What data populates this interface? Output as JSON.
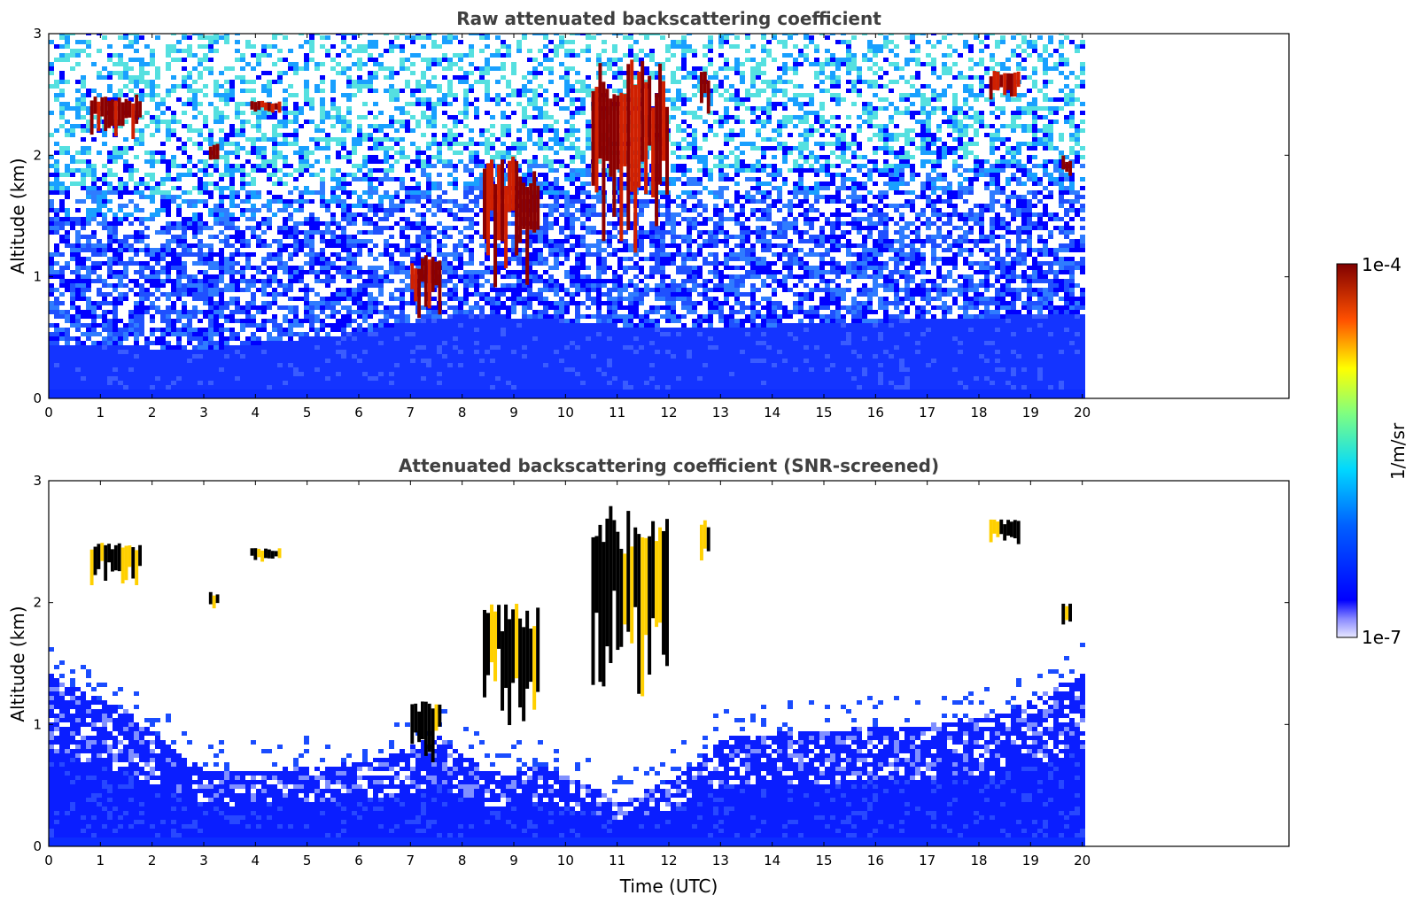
{
  "chart_data": [
    {
      "type": "heatmap",
      "title": "Raw attenuated backscattering coefficient",
      "xlabel": "",
      "ylabel": "Altitude (km)",
      "xlim": [
        0,
        24
      ],
      "ylim": [
        0,
        3
      ],
      "x_ticks": [
        "0",
        "1",
        "2",
        "3",
        "4",
        "5",
        "6",
        "7",
        "8",
        "9",
        "10",
        "11",
        "12",
        "13",
        "14",
        "15",
        "16",
        "17",
        "18",
        "19",
        "20"
      ],
      "y_ticks": [
        "0",
        "1",
        "2",
        "3"
      ],
      "data_extent_x": [
        0,
        20.1
      ],
      "screened": false,
      "features": [
        {
          "type": "cloud",
          "t0": 0.8,
          "t1": 1.8,
          "alt": [
            2.2,
            2.5
          ]
        },
        {
          "type": "cloud",
          "t0": 3.1,
          "t1": 3.3,
          "alt": [
            1.95,
            2.1
          ]
        },
        {
          "type": "cloud",
          "t0": 3.9,
          "t1": 4.5,
          "alt": [
            2.35,
            2.45
          ]
        },
        {
          "type": "cloud",
          "t0": 7.0,
          "t1": 7.6,
          "alt": [
            0.75,
            1.2
          ]
        },
        {
          "type": "cloud",
          "t0": 8.4,
          "t1": 9.5,
          "alt": [
            1.1,
            2.0
          ]
        },
        {
          "type": "cloud",
          "t0": 10.5,
          "t1": 12.0,
          "alt": [
            1.4,
            2.8
          ]
        },
        {
          "type": "cloud",
          "t0": 12.6,
          "t1": 12.8,
          "alt": [
            2.4,
            2.7
          ]
        },
        {
          "type": "cloud",
          "t0": 18.2,
          "t1": 18.8,
          "alt": [
            2.5,
            2.7
          ]
        },
        {
          "type": "cloud",
          "t0": 19.6,
          "t1": 19.8,
          "alt": [
            1.8,
            2.0
          ]
        }
      ],
      "boundary_layer_top_km": [
        {
          "t": 0,
          "alt": 0.45
        },
        {
          "t": 3,
          "alt": 0.4
        },
        {
          "t": 6,
          "alt": 0.55
        },
        {
          "t": 8,
          "alt": 0.7
        },
        {
          "t": 11,
          "alt": 0.6
        },
        {
          "t": 14,
          "alt": 0.6
        },
        {
          "t": 17,
          "alt": 0.65
        },
        {
          "t": 20.1,
          "alt": 0.7
        }
      ]
    },
    {
      "type": "heatmap",
      "title": "Attenuated backscattering coefficient (SNR-screened)",
      "xlabel": "Time (UTC)",
      "ylabel": "Altitude (km)",
      "xlim": [
        0,
        24
      ],
      "ylim": [
        0,
        3
      ],
      "x_ticks": [
        "0",
        "1",
        "2",
        "3",
        "4",
        "5",
        "6",
        "7",
        "8",
        "9",
        "10",
        "11",
        "12",
        "13",
        "14",
        "15",
        "16",
        "17",
        "18",
        "19",
        "20"
      ],
      "y_ticks": [
        "0",
        "1",
        "2",
        "3"
      ],
      "data_extent_x": [
        0,
        20.1
      ],
      "screened": true,
      "screen_top_km": [
        {
          "t": 0,
          "alt": 1.4
        },
        {
          "t": 1.5,
          "alt": 1.1
        },
        {
          "t": 3,
          "alt": 0.6
        },
        {
          "t": 5,
          "alt": 0.65
        },
        {
          "t": 6.2,
          "alt": 0.7
        },
        {
          "t": 7.5,
          "alt": 0.9
        },
        {
          "t": 8.5,
          "alt": 0.6
        },
        {
          "t": 9.5,
          "alt": 0.65
        },
        {
          "t": 10.5,
          "alt": 0.5
        },
        {
          "t": 11,
          "alt": 0.35
        },
        {
          "t": 12,
          "alt": 0.55
        },
        {
          "t": 13,
          "alt": 0.9
        },
        {
          "t": 15,
          "alt": 0.95
        },
        {
          "t": 17,
          "alt": 1.0
        },
        {
          "t": 18.5,
          "alt": 1.1
        },
        {
          "t": 20.1,
          "alt": 1.45
        }
      ]
    }
  ],
  "colorbar": {
    "min_label": "1e-7",
    "max_label": "1e-4",
    "label": "1/m/sr",
    "colormap": "jet"
  },
  "colors": {
    "background_blue": "#1f3cff",
    "deep_blue": "#0000ff",
    "cloud_core": "#8b0000"
  }
}
